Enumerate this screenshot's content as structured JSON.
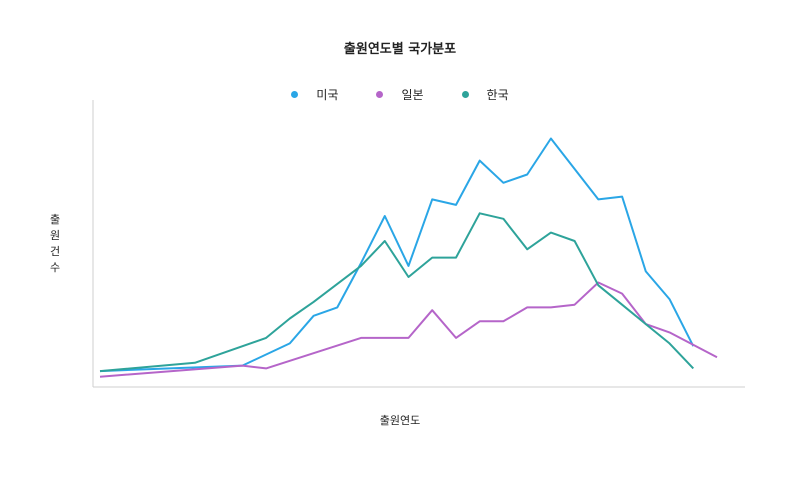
{
  "chart_data": {
    "type": "line",
    "title": "출원연도별 국가분포",
    "xlabel": "출원연도",
    "ylabel": "출원건수",
    "x": [
      1,
      5,
      7,
      8,
      9,
      10,
      11,
      12,
      13,
      14,
      15,
      16,
      17,
      18,
      19,
      20,
      21,
      22,
      23,
      24,
      25,
      26,
      27
    ],
    "ylim": [
      0,
      100
    ],
    "grid": false,
    "legend_position": "top",
    "series": [
      {
        "name": "미국",
        "color": "#2aa6e6",
        "points": [
          [
            1,
            5
          ],
          [
            7,
            7
          ],
          [
            9,
            15
          ],
          [
            10,
            25
          ],
          [
            11,
            28
          ],
          [
            12,
            44
          ],
          [
            13,
            61
          ],
          [
            14,
            43
          ],
          [
            15,
            67
          ],
          [
            16,
            65
          ],
          [
            17,
            81
          ],
          [
            18,
            73
          ],
          [
            19,
            76
          ],
          [
            20,
            89
          ],
          [
            22,
            67
          ],
          [
            23,
            68
          ],
          [
            24,
            41
          ],
          [
            25,
            31
          ],
          [
            26,
            14
          ]
        ]
      },
      {
        "name": "일본",
        "color": "#b565c9",
        "points": [
          [
            1,
            3
          ],
          [
            7,
            7
          ],
          [
            8,
            6
          ],
          [
            12,
            17
          ],
          [
            14,
            17
          ],
          [
            15,
            27
          ],
          [
            16,
            17
          ],
          [
            17,
            23
          ],
          [
            18,
            23
          ],
          [
            19,
            28
          ],
          [
            20,
            28
          ],
          [
            21,
            29
          ],
          [
            22,
            37
          ],
          [
            23,
            33
          ],
          [
            24,
            22
          ],
          [
            25,
            19
          ],
          [
            27,
            10
          ]
        ]
      },
      {
        "name": "한국",
        "color": "#2ea39a",
        "points": [
          [
            1,
            5
          ],
          [
            5,
            8
          ],
          [
            8,
            17
          ],
          [
            9,
            24
          ],
          [
            10,
            30
          ],
          [
            12,
            43
          ],
          [
            13,
            52
          ],
          [
            14,
            39
          ],
          [
            15,
            46
          ],
          [
            16,
            46
          ],
          [
            17,
            62
          ],
          [
            18,
            60
          ],
          [
            19,
            49
          ],
          [
            20,
            55
          ],
          [
            21,
            52
          ],
          [
            22,
            36
          ],
          [
            23,
            29
          ],
          [
            24,
            22
          ],
          [
            25,
            15
          ],
          [
            26,
            6
          ]
        ]
      }
    ]
  }
}
